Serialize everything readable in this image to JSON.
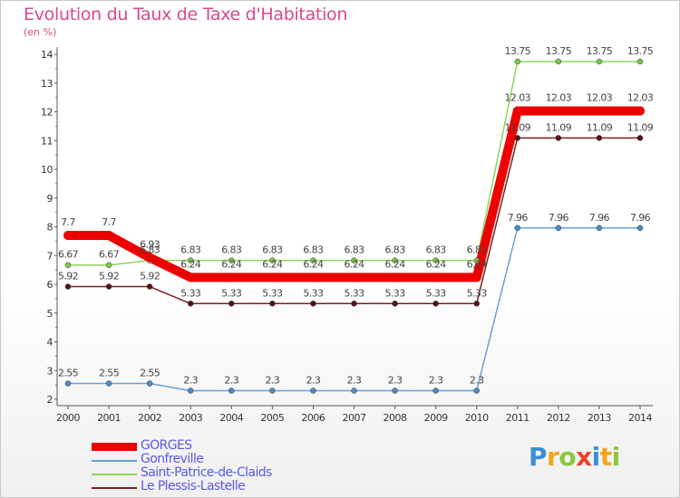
{
  "title": "Evolution du Taux de Taxe d'Habitation",
  "unit_label": "(en %)",
  "logo": {
    "text": "Proxiti",
    "letter_colors": [
      "#3b8fd6",
      "#f2a51a",
      "#8cc63f",
      "#e8452c",
      "#3b8fd6",
      "#f2a51a",
      "#8cc63f"
    ]
  },
  "chart_data": {
    "type": "line",
    "title": "Evolution du Taux de Taxe d'Habitation",
    "ylabel": "(en %)",
    "xlabel": "",
    "x": [
      "2000",
      "2001",
      "2002",
      "2003",
      "2004",
      "2005",
      "2006",
      "2007",
      "2008",
      "2009",
      "2010",
      "2011",
      "2012",
      "2013",
      "2014"
    ],
    "ylim": [
      2,
      14
    ],
    "yticks": [
      2,
      3,
      4,
      5,
      6,
      7,
      8,
      9,
      10,
      11,
      12,
      13,
      14
    ],
    "grid": false,
    "legend_position": "bottom-left",
    "series": [
      {
        "name": "GORGES",
        "color": "#ee0000",
        "width": 10,
        "values": [
          7.7,
          7.7,
          6.93,
          6.24,
          6.24,
          6.24,
          6.24,
          6.24,
          6.24,
          6.24,
          6.24,
          12.03,
          12.03,
          12.03,
          12.03
        ],
        "labels": [
          "7.7",
          "7.7",
          "6.93",
          "6.24",
          "6.24",
          "6.24",
          "6.24",
          "6.24",
          "6.24",
          "6.24",
          "6.24",
          "12.03",
          "12.03",
          "12.03",
          "12.03"
        ]
      },
      {
        "name": "Gonfreville",
        "color": "#6b9fd4",
        "width": 1.5,
        "values": [
          2.55,
          2.55,
          2.55,
          2.3,
          2.3,
          2.3,
          2.3,
          2.3,
          2.3,
          2.3,
          2.3,
          7.96,
          7.96,
          7.96,
          7.96
        ],
        "labels": [
          "2.55",
          "2.55",
          "2.55",
          "2.3",
          "2.3",
          "2.3",
          "2.3",
          "2.3",
          "2.3",
          "2.3",
          "2.3",
          "7.96",
          "7.96",
          "7.96",
          "7.96"
        ]
      },
      {
        "name": "Saint-Patrice-de-Claids",
        "color": "#8ed35a",
        "width": 1.5,
        "values": [
          6.67,
          6.67,
          6.83,
          6.83,
          6.83,
          6.83,
          6.83,
          6.83,
          6.83,
          6.83,
          6.83,
          13.75,
          13.75,
          13.75,
          13.75
        ],
        "labels": [
          "6.67",
          "6.67",
          "6.83",
          "6.83",
          "6.83",
          "6.83",
          "6.83",
          "6.83",
          "6.83",
          "6.83",
          "6.83",
          "13.75",
          "13.75",
          "13.75",
          "13.75"
        ]
      },
      {
        "name": "Le Plessis-Lastelle",
        "color": "#7a2020",
        "width": 1.5,
        "values": [
          5.92,
          5.92,
          5.92,
          5.33,
          5.33,
          5.33,
          5.33,
          5.33,
          5.33,
          5.33,
          5.33,
          11.09,
          11.09,
          11.09,
          11.09
        ],
        "labels": [
          "5.92",
          "5.92",
          "5.92",
          "5.33",
          "5.33",
          "5.33",
          "5.33",
          "5.33",
          "5.33",
          "5.33",
          "5.33",
          "11.09",
          "11.09",
          "11.09",
          "11.09"
        ]
      }
    ],
    "marker_colors": {
      "GORGES": "#ee0000",
      "Gonfreville": "#4a8cc8",
      "Saint-Patrice-de-Claids": "#7cc84a",
      "Le Plessis-Lastelle": "#5a1010"
    }
  }
}
